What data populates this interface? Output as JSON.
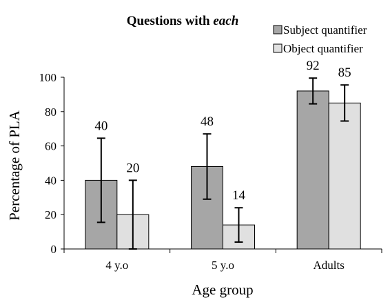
{
  "chart_data": {
    "type": "bar",
    "title_prefix": "Questions with ",
    "title_emph": "each",
    "xlabel": "Age group",
    "ylabel": "Percentage of PLA",
    "ylim": [
      0,
      100
    ],
    "yticks": [
      0,
      20,
      40,
      60,
      80,
      100
    ],
    "categories": [
      "4 y.o",
      "5 y.o",
      "Adults"
    ],
    "legend_position": "top-right",
    "grid": false,
    "series": [
      {
        "name": "Subject quantifier",
        "color": "#a6a6a6",
        "values": [
          40,
          48,
          92
        ],
        "labels": [
          "40",
          "48",
          "92"
        ],
        "err_low": [
          15.5,
          29,
          84.5
        ],
        "err_high": [
          64.5,
          67,
          99.5
        ]
      },
      {
        "name": "Object quantifier",
        "color": "#e0e0e0",
        "values": [
          20,
          14,
          85
        ],
        "labels": [
          "20",
          "14",
          "85"
        ],
        "err_low": [
          0,
          4,
          74.5
        ],
        "err_high": [
          40,
          24,
          95.5
        ]
      }
    ]
  }
}
